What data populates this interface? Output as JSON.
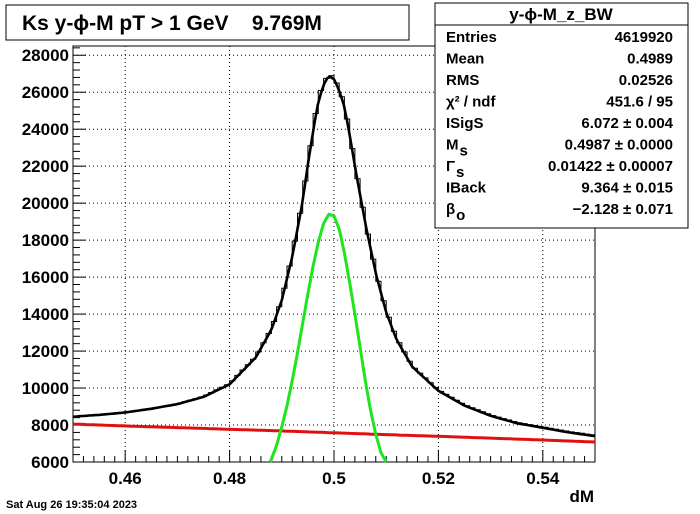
{
  "title": "Ks y-ϕ-M pT > 1 GeV    9.769M",
  "timestamp": "Sat Aug 26 19:35:04 2023",
  "stats": {
    "name": "y-ϕ-M_z_BW",
    "rows": [
      {
        "label": "Entries",
        "sub": "",
        "value": "4619920"
      },
      {
        "label": "Mean",
        "sub": "",
        "value": "0.4989"
      },
      {
        "label": "RMS",
        "sub": "",
        "value": "0.02526"
      },
      {
        "label": "χ² / ndf",
        "sub": "",
        "value": "451.6 / 95"
      },
      {
        "label": "ISigS",
        "sub": "",
        "value": "6.072 ± 0.004"
      },
      {
        "label": "M",
        "sub": "s",
        "value": "0.4987 ± 0.0000"
      },
      {
        "label": "Γ",
        "sub": "s",
        "value": "0.01422 ± 0.00007"
      },
      {
        "label": "IBack",
        "sub": "",
        "value": "9.364 ± 0.015"
      },
      {
        "label": "β",
        "sub": "o",
        "value": "−2.128 ± 0.071"
      }
    ]
  },
  "chart_data": {
    "type": "line",
    "title": "Ks y-ϕ-M pT > 1 GeV    9.769M",
    "xlabel": "dM",
    "ylabel": "",
    "xlim": [
      0.45,
      0.55
    ],
    "ylim": [
      6000,
      28500
    ],
    "grid": true,
    "x_ticks": [
      0.46,
      0.48,
      0.5,
      0.52,
      0.54
    ],
    "y_ticks": [
      6000,
      8000,
      10000,
      12000,
      14000,
      16000,
      18000,
      20000,
      22000,
      24000,
      26000,
      28000
    ],
    "x_tick_labels": [
      "0.46",
      "0.48",
      "0.5",
      "0.52",
      "0.54"
    ],
    "y_tick_labels": [
      "6000",
      "8000",
      "10000",
      "12000",
      "14000",
      "16000",
      "18000",
      "20000",
      "22000",
      "24000",
      "26000",
      "28000"
    ],
    "series": [
      {
        "role": "histogram",
        "color": "#000000",
        "x": [
          0.45,
          0.455,
          0.46,
          0.465,
          0.47,
          0.475,
          0.48,
          0.485,
          0.488,
          0.49,
          0.492,
          0.494,
          0.495,
          0.496,
          0.497,
          0.498,
          0.499,
          0.5,
          0.501,
          0.502,
          0.503,
          0.504,
          0.506,
          0.508,
          0.51,
          0.512,
          0.515,
          0.52,
          0.525,
          0.53,
          0.535,
          0.54,
          0.545,
          0.55
        ],
        "y": [
          8450,
          8550,
          8700,
          8900,
          9150,
          9550,
          10250,
          11700,
          13200,
          14800,
          17200,
          20200,
          22200,
          24000,
          25700,
          26500,
          27000,
          26800,
          26200,
          25300,
          23800,
          22100,
          19000,
          16300,
          14200,
          12700,
          11200,
          9900,
          9100,
          8550,
          8150,
          7900,
          7650,
          7450
        ]
      },
      {
        "role": "total fit",
        "color": "#000000",
        "x": [
          0.45,
          0.455,
          0.46,
          0.465,
          0.47,
          0.475,
          0.48,
          0.485,
          0.488,
          0.49,
          0.492,
          0.494,
          0.495,
          0.496,
          0.497,
          0.498,
          0.499,
          0.5,
          0.501,
          0.502,
          0.503,
          0.504,
          0.506,
          0.508,
          0.51,
          0.512,
          0.515,
          0.52,
          0.525,
          0.53,
          0.535,
          0.54,
          0.545,
          0.55
        ],
        "y": [
          8450,
          8550,
          8680,
          8880,
          9130,
          9520,
          10200,
          11650,
          13150,
          14750,
          17100,
          20100,
          22100,
          23900,
          25500,
          26400,
          26900,
          26700,
          26100,
          25200,
          23700,
          22000,
          18900,
          16200,
          14100,
          12600,
          11150,
          9850,
          9050,
          8500,
          8100,
          7850,
          7600,
          7400
        ]
      },
      {
        "role": "signal",
        "color": "#1ee51e",
        "x": [
          0.4878,
          0.489,
          0.49,
          0.491,
          0.492,
          0.493,
          0.494,
          0.495,
          0.496,
          0.497,
          0.498,
          0.499,
          0.5,
          0.501,
          0.502,
          0.503,
          0.504,
          0.505,
          0.506,
          0.507,
          0.508,
          0.509,
          0.51
        ],
        "y": [
          6000,
          6900,
          7900,
          9050,
          10400,
          11900,
          13500,
          15100,
          16600,
          17900,
          18900,
          19400,
          19300,
          18600,
          17300,
          15700,
          14000,
          12200,
          10400,
          8800,
          7500,
          6500,
          6000
        ]
      },
      {
        "role": "background",
        "color": "#e01010",
        "x": [
          0.45,
          0.46,
          0.47,
          0.48,
          0.49,
          0.5,
          0.51,
          0.52,
          0.53,
          0.54,
          0.55
        ],
        "y": [
          8050,
          7950,
          7860,
          7770,
          7680,
          7580,
          7480,
          7390,
          7290,
          7190,
          7080
        ]
      }
    ]
  }
}
